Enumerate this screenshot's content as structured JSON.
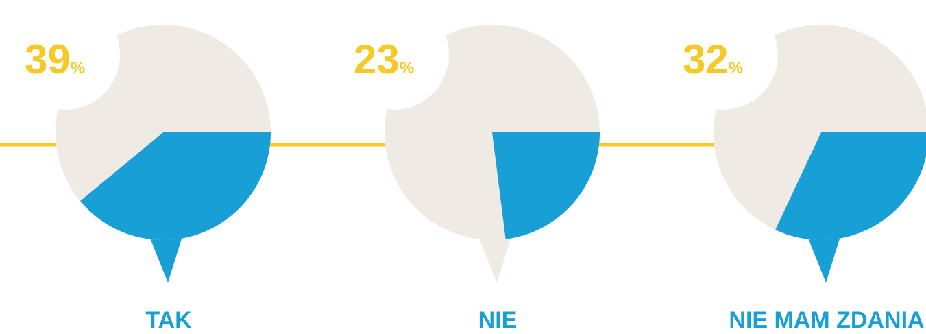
{
  "chart_data": [
    {
      "type": "pie",
      "categories": [
        "TAK"
      ],
      "values": [
        39
      ],
      "unit": "%",
      "color": "#189fd5",
      "background": "#efebe4"
    },
    {
      "type": "pie",
      "categories": [
        "NIE"
      ],
      "values": [
        23
      ],
      "unit": "%",
      "color": "#189fd5",
      "background": "#efebe4"
    },
    {
      "type": "pie",
      "categories": [
        "NIE MAM ZDANIA"
      ],
      "values": [
        32
      ],
      "unit": "%",
      "color": "#189fd5",
      "background": "#efebe4"
    }
  ]
}
